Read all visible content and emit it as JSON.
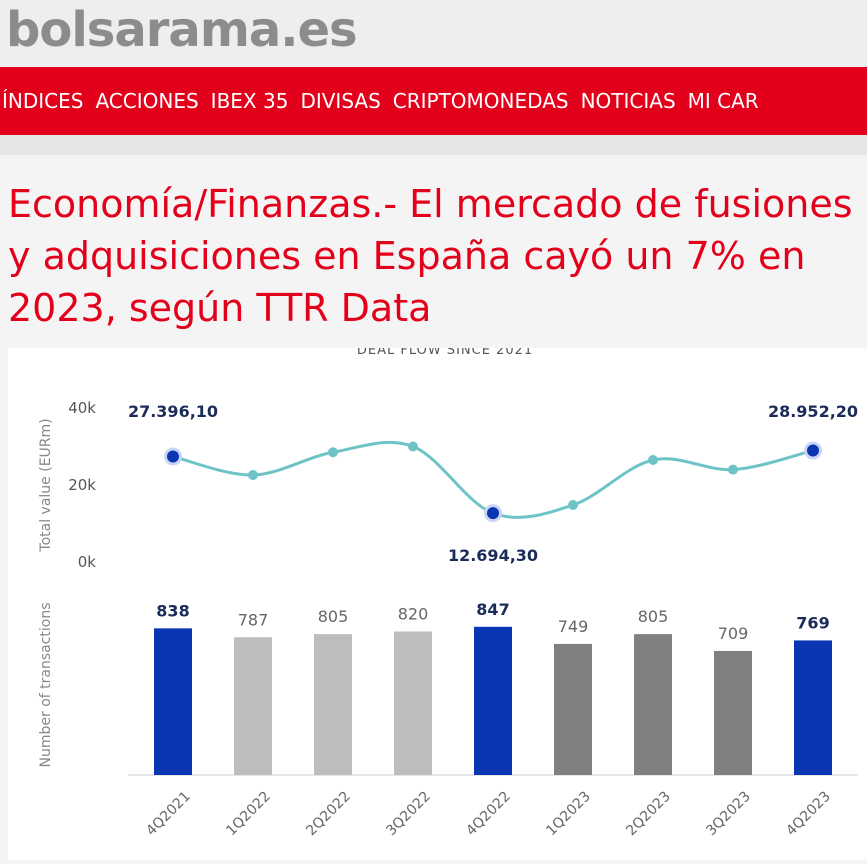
{
  "header": {
    "site": "bolsarama.es"
  },
  "nav": [
    "ÍNDICES",
    "ACCIONES",
    "IBEX 35",
    "DIVISAS",
    "CRIPTOMONEDAS",
    "NOTICIAS",
    "MI CAR"
  ],
  "article": {
    "title": "Economía/Finanzas.- El mercado de fusiones y adquisiciones en España cayó un 7% en 2023, según TTR Data"
  },
  "chart_data": {
    "type": "line-bar",
    "title": "DEAL FLOW SINCE 2021",
    "categories": [
      "4Q2021",
      "1Q2022",
      "2Q2022",
      "3Q2022",
      "4Q2022",
      "1Q2023",
      "2Q2023",
      "3Q2023",
      "4Q2023"
    ],
    "ylabel": "Total value (EURm)",
    "y2label": "Number of transactions",
    "ylim": [
      0,
      40000
    ],
    "yticks": [
      {
        "value": 0,
        "label": "0k"
      },
      {
        "value": 20000,
        "label": "20k"
      },
      {
        "value": 40000,
        "label": "40k"
      }
    ],
    "y2lim": [
      0,
      1000
    ],
    "series": [
      {
        "name": "Total value (EURm)",
        "kind": "line",
        "color": "#6ec3c6",
        "marker_color": "#0b36b3",
        "values": [
          27396.1,
          22600,
          28500,
          30000,
          12694.3,
          14800,
          26500,
          24000,
          28952.2
        ],
        "value_labels": [
          "27.396,10",
          null,
          null,
          null,
          "12.694,30",
          null,
          null,
          null,
          "28.952,20"
        ]
      },
      {
        "name": "Number of transactions",
        "kind": "bar",
        "axis": "y2",
        "values": [
          838,
          787,
          805,
          820,
          847,
          749,
          805,
          709,
          769
        ],
        "colors": [
          "#0b36b3",
          "#bdbdbf",
          "#bdbdbf",
          "#bdbdbf",
          "#0b36b3",
          "#808082",
          "#808082",
          "#808082",
          "#0b36b3"
        ]
      }
    ]
  }
}
